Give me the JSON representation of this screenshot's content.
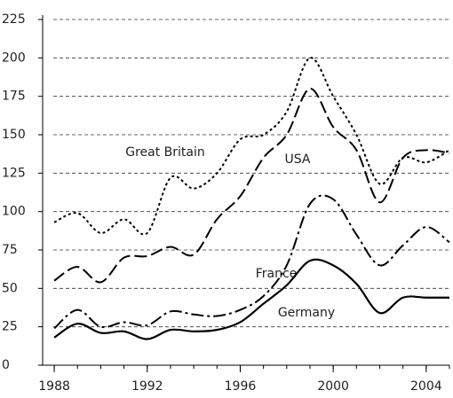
{
  "chart_data": {
    "type": "line",
    "x": [
      1988,
      1989,
      1990,
      1991,
      1992,
      1993,
      1994,
      1995,
      1996,
      1997,
      1998,
      1999,
      2000,
      2001,
      2002,
      2003,
      2004,
      2005
    ],
    "series": [
      {
        "name": "Great Britain",
        "color": "#000000",
        "dash": "3,3",
        "values": [
          93,
          99,
          86,
          95,
          86,
          122,
          115,
          125,
          147,
          150,
          165,
          200,
          175,
          150,
          118,
          135,
          132,
          140
        ]
      },
      {
        "name": "USA",
        "color": "#000000",
        "dash": "14,5",
        "values": [
          55,
          64,
          54,
          70,
          71,
          77,
          72,
          95,
          110,
          135,
          150,
          180,
          155,
          140,
          106,
          135,
          140,
          138
        ]
      },
      {
        "name": "France",
        "color": "#000000",
        "dash": "14,4,3,4",
        "values": [
          24,
          36,
          25,
          28,
          26,
          35,
          33,
          32,
          36,
          45,
          65,
          105,
          108,
          85,
          65,
          78,
          90,
          80
        ]
      },
      {
        "name": "Germany",
        "color": "#000000",
        "dash": "none",
        "values": [
          18,
          27,
          21,
          22,
          17,
          23,
          22,
          23,
          28,
          40,
          52,
          68,
          65,
          53,
          34,
          44,
          44,
          44
        ]
      }
    ],
    "xlim": [
      1987.5,
      2005
    ],
    "xticks": [
      1988,
      1992,
      1996,
      2000,
      2004
    ],
    "ylim": [
      0,
      225
    ],
    "yticks": [
      0,
      25,
      50,
      75,
      100,
      125,
      150,
      175,
      200,
      225
    ],
    "grid": true
  }
}
